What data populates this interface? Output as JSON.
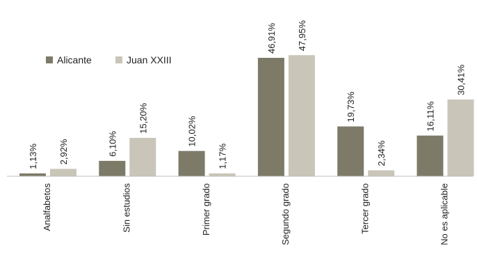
{
  "chart_data": {
    "type": "bar",
    "title": "",
    "xlabel": "",
    "ylabel": "",
    "categories": [
      "Analfabetos",
      "Sin estudios",
      "Primer grado",
      "Segundo grado",
      "Tercer grado",
      "No es aplicable"
    ],
    "series": [
      {
        "name": "Alicante",
        "color": "#7d7a68",
        "values": [
          1.13,
          6.1,
          10.02,
          46.91,
          19.73,
          16.11
        ],
        "labels": [
          "1,13%",
          "6,10%",
          "10,02%",
          "46,91%",
          "19,73%",
          "16,11%"
        ]
      },
      {
        "name": "Juan XXIII",
        "color": "#c9c5b8",
        "values": [
          2.92,
          15.2,
          1.17,
          47.95,
          2.34,
          30.41
        ],
        "labels": [
          "2,92%",
          "15,20%",
          "1,17%",
          "47,95%",
          "2,34%",
          "30,41%"
        ]
      }
    ],
    "ylim": [
      0,
      48
    ],
    "grid": false,
    "legend_position": "top-left",
    "label_rotation": -90
  }
}
